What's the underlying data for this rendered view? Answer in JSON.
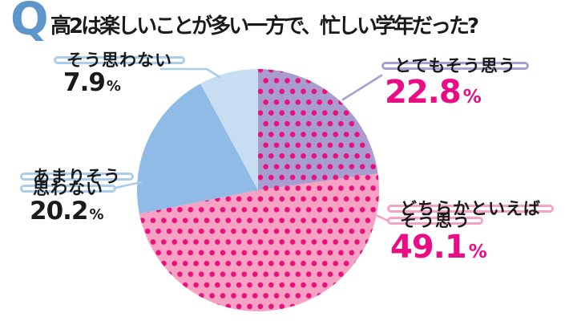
{
  "title": {
    "q": "Q",
    "text": "高2は楽しいことが多い一方で、忙しい学年だった?"
  },
  "chart_data": {
    "type": "pie",
    "title": "高2は楽しいことが多い一方で、忙しい学年だった?",
    "unit": "%",
    "total": 100.0,
    "start_angle": "12-oclock",
    "direction": "clockwise",
    "legend_position": "callout-labels",
    "slices": [
      {
        "label": "とてもそう思う",
        "value": 22.8,
        "color": "#a79ecf",
        "dot_color": "#eb0f7c",
        "pattern": "polka-dots"
      },
      {
        "label": "どちらかといえばそう思う",
        "value": 49.1,
        "color": "#f6a2c4",
        "dot_color": "#eb0f7c",
        "pattern": "polka-dots"
      },
      {
        "label": "あまりそう思わない",
        "value": 20.2,
        "color": "#90bbe6",
        "pattern": "solid"
      },
      {
        "label": "そう思わない",
        "value": 7.9,
        "color": "#c7def2",
        "pattern": "solid"
      }
    ]
  },
  "labels": {
    "strongly_agree": {
      "lines": [
        "とてもそう思う"
      ],
      "pct": "22.8",
      "unit": "%"
    },
    "somewhat_agree": {
      "lines": [
        "どちらかといえば",
        "そう思う"
      ],
      "pct": "49.1",
      "unit": "%"
    },
    "not_really": {
      "lines": [
        "あまりそう",
        "思わない"
      ],
      "pct": "20.2",
      "unit": "%"
    },
    "disagree": {
      "lines": [
        "そう思わない"
      ],
      "pct": "7.9",
      "unit": "%"
    }
  },
  "colors": {
    "q_blue": "#5e95cb",
    "text_black": "#1a1a1a",
    "magenta": "#ea0c85",
    "pill_border_purple": "#a89fd3",
    "pill_border_pink": "#f5a3c3",
    "pill_border_blue": "#aacdeb"
  }
}
